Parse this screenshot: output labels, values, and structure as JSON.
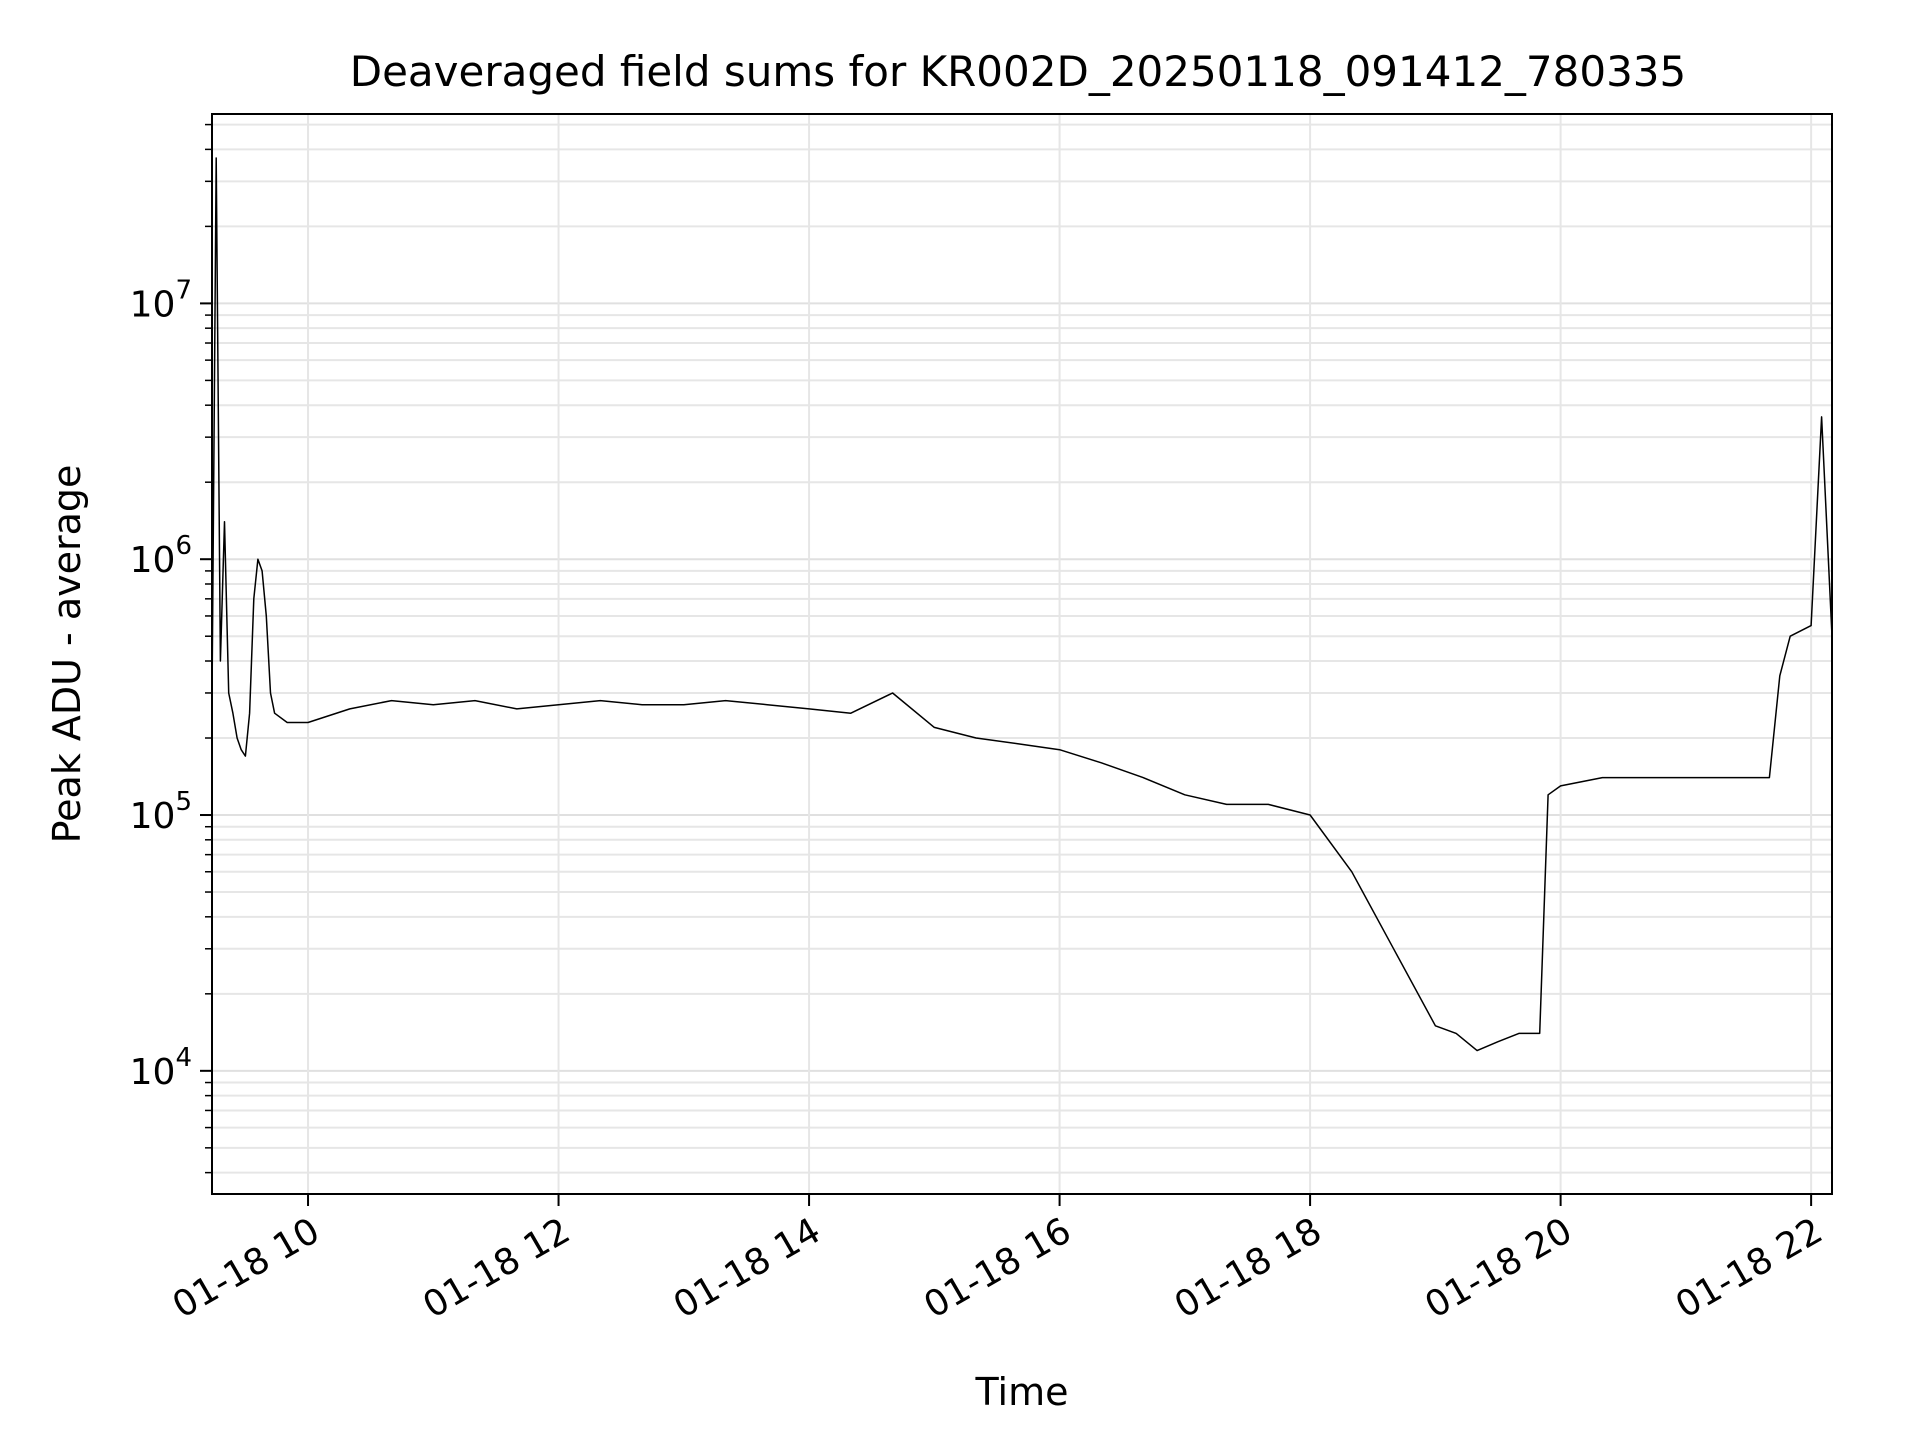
{
  "chart_data": {
    "type": "line",
    "title": "Deaveraged field sums for KR002D_20250118_091412_780335",
    "xlabel": "Time",
    "ylabel": "Peak ADU - average",
    "y_scale": "log",
    "ylim": [
      3300,
      55000000
    ],
    "xlim": [
      "2025-01-18 09:14",
      "2025-01-18 22:10"
    ],
    "grid": true,
    "line_color": "#000000",
    "x_ticks": [
      {
        "time": "2025-01-18 10:00",
        "label": "01-18 10"
      },
      {
        "time": "2025-01-18 12:00",
        "label": "01-18 12"
      },
      {
        "time": "2025-01-18 14:00",
        "label": "01-18 14"
      },
      {
        "time": "2025-01-18 16:00",
        "label": "01-18 16"
      },
      {
        "time": "2025-01-18 18:00",
        "label": "01-18 18"
      },
      {
        "time": "2025-01-18 20:00",
        "label": "01-18 20"
      },
      {
        "time": "2025-01-18 22:00",
        "label": "01-18 22"
      }
    ],
    "y_ticks": [
      {
        "value": 10000,
        "base": "10",
        "exp": "4"
      },
      {
        "value": 100000,
        "base": "10",
        "exp": "5"
      },
      {
        "value": 1000000,
        "base": "10",
        "exp": "6"
      },
      {
        "value": 10000000,
        "base": "10",
        "exp": "7"
      }
    ],
    "series": [
      {
        "x": [
          "2025-01-18 09:14",
          "2025-01-18 09:16",
          "2025-01-18 09:18",
          "2025-01-18 09:20",
          "2025-01-18 09:22",
          "2025-01-18 09:24",
          "2025-01-18 09:26",
          "2025-01-18 09:28",
          "2025-01-18 09:30",
          "2025-01-18 09:32",
          "2025-01-18 09:34",
          "2025-01-18 09:36",
          "2025-01-18 09:38",
          "2025-01-18 09:40",
          "2025-01-18 09:42",
          "2025-01-18 09:44",
          "2025-01-18 09:50",
          "2025-01-18 10:00",
          "2025-01-18 10:20",
          "2025-01-18 10:40",
          "2025-01-18 11:00",
          "2025-01-18 11:20",
          "2025-01-18 11:40",
          "2025-01-18 12:00",
          "2025-01-18 12:20",
          "2025-01-18 12:40",
          "2025-01-18 13:00",
          "2025-01-18 13:20",
          "2025-01-18 13:40",
          "2025-01-18 14:00",
          "2025-01-18 14:20",
          "2025-01-18 14:40",
          "2025-01-18 15:00",
          "2025-01-18 15:20",
          "2025-01-18 15:40",
          "2025-01-18 16:00",
          "2025-01-18 16:20",
          "2025-01-18 16:40",
          "2025-01-18 17:00",
          "2025-01-18 17:20",
          "2025-01-18 17:40",
          "2025-01-18 18:00",
          "2025-01-18 18:20",
          "2025-01-18 18:40",
          "2025-01-18 19:00",
          "2025-01-18 19:10",
          "2025-01-18 19:20",
          "2025-01-18 19:30",
          "2025-01-18 19:40",
          "2025-01-18 19:50",
          "2025-01-18 19:54",
          "2025-01-18 20:00",
          "2025-01-18 20:20",
          "2025-01-18 20:40",
          "2025-01-18 21:00",
          "2025-01-18 21:20",
          "2025-01-18 21:40",
          "2025-01-18 21:45",
          "2025-01-18 21:50",
          "2025-01-18 22:00",
          "2025-01-18 22:05",
          "2025-01-18 22:10"
        ],
        "y": [
          280000,
          37000000,
          400000,
          1400000,
          300000,
          250000,
          200000,
          180000,
          170000,
          250000,
          700000,
          1000000,
          900000,
          600000,
          300000,
          250000,
          230000,
          230000,
          260000,
          280000,
          270000,
          280000,
          260000,
          270000,
          280000,
          270000,
          270000,
          280000,
          270000,
          260000,
          250000,
          300000,
          220000,
          200000,
          190000,
          180000,
          160000,
          140000,
          120000,
          110000,
          110000,
          100000,
          60000,
          30000,
          15000,
          14000,
          12000,
          13000,
          14000,
          14000,
          120000,
          130000,
          140000,
          140000,
          140000,
          140000,
          140000,
          350000,
          500000,
          550000,
          3600000,
          500000
        ]
      }
    ]
  }
}
